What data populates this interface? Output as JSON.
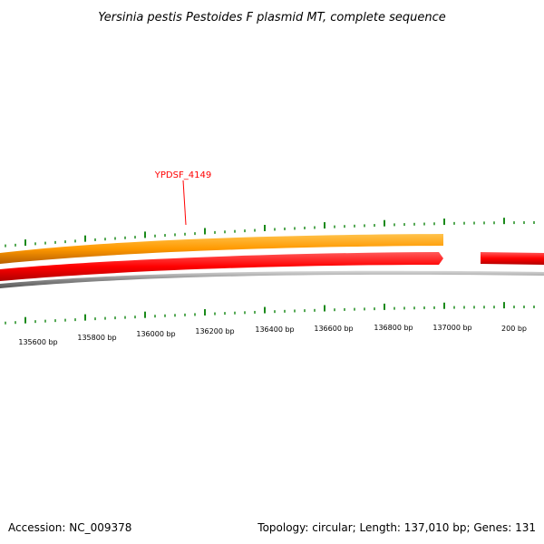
{
  "title": "Yersinia pestis Pestoides F plasmid MT, complete sequence",
  "footer": {
    "accession": "Accession: NC_009378",
    "summary": "Topology: circular; Length: 137,010 bp; Genes: 131"
  },
  "gene_labels": [
    {
      "text": "YPDSF_4149"
    }
  ],
  "tick_labels": [
    "135600 bp",
    "135800 bp",
    "136000 bp",
    "136200 bp",
    "136400 bp",
    "136600 bp",
    "136800 bp",
    "137000 bp",
    "200 bp"
  ],
  "colors": {
    "forward_track": "#ff9900",
    "reverse_track": "#ff0000",
    "backbone": "#888888",
    "gc_ticks": "#1a8a1a",
    "gene_label": "#ff0000"
  }
}
